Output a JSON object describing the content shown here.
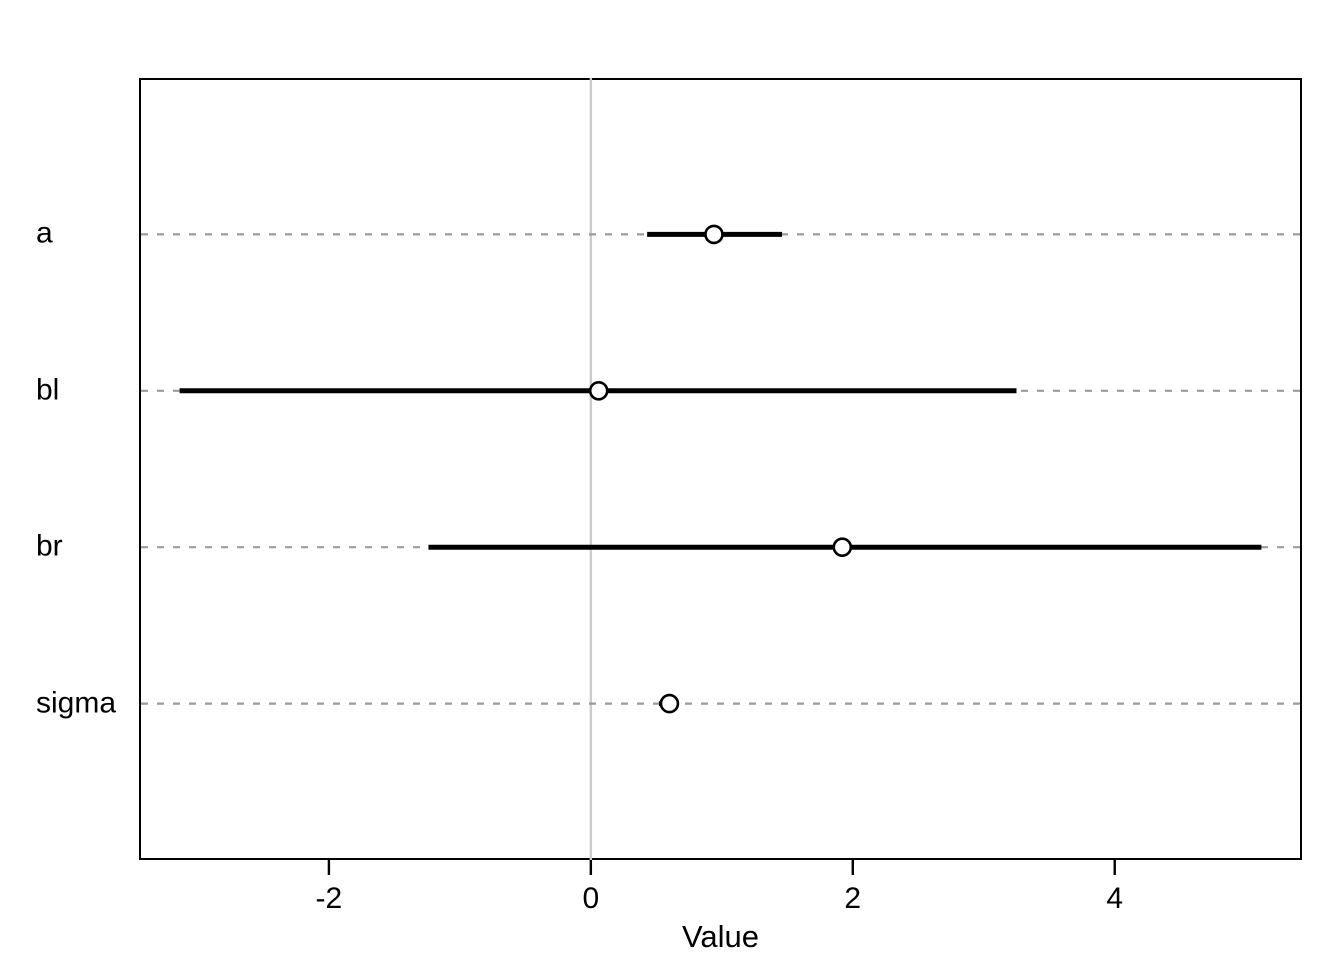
{
  "chart_data": {
    "type": "dot-whisker",
    "orientation": "horizontal",
    "title": "",
    "xlabel": "Value",
    "ylabel": "",
    "x_ticks": [
      -2,
      0,
      2,
      4
    ],
    "xlim": [
      -3.45,
      5.43
    ],
    "reference_line_x": 0,
    "grid": "dashed horizontal line per parameter, full plot width",
    "legend": "none",
    "parameters": [
      {
        "name": "a",
        "estimate": 0.94,
        "lower": 0.43,
        "upper": 1.46
      },
      {
        "name": "bl",
        "estimate": 0.06,
        "lower": -3.14,
        "upper": 3.25
      },
      {
        "name": "br",
        "estimate": 1.92,
        "lower": -1.24,
        "upper": 5.12
      },
      {
        "name": "sigma",
        "estimate": 0.6,
        "lower": 0.52,
        "upper": 0.66
      }
    ],
    "colors": {
      "background": "#ffffff",
      "interval_line": "#000000",
      "point_stroke": "#000000",
      "point_fill": "#ffffff",
      "gridline": "#9c9c9c",
      "reference_line": "#cccccc",
      "axis_box": "#000000",
      "tick": "#000000",
      "text": "#000000"
    }
  }
}
